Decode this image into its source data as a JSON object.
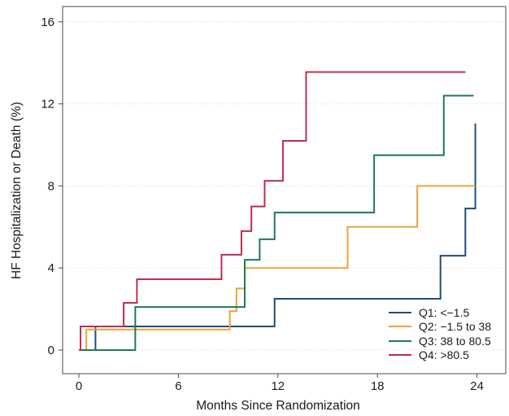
{
  "figure": {
    "background": "#ffffff",
    "frame_color": "#4a4a4a",
    "grid_color": "#d4d4d4",
    "text_color": "#1a1a1a"
  },
  "chart_data": {
    "type": "line",
    "subtype": "kaplan-meier-cumulative-incidence-step",
    "title": "",
    "xlabel": "Months Since Randomization",
    "ylabel": "HF Hospitalization or Death (%)",
    "x_ticks": [
      0,
      6,
      12,
      18,
      24
    ],
    "y_ticks": [
      0,
      4,
      8,
      12,
      16
    ],
    "xlim": [
      -1.0,
      25.7
    ],
    "ylim": [
      -1.1,
      16.7
    ],
    "grid": "horizontal-dotted",
    "legend_position": "bottom-right",
    "series": [
      {
        "name": "Q1",
        "label": "Q1: <−1.5",
        "color": "#1f4e79",
        "end_month": 23.95,
        "steps": [
          [
            0,
            0
          ],
          [
            1.0,
            1.15
          ],
          [
            11.8,
            2.5
          ],
          [
            21.8,
            4.6
          ],
          [
            23.3,
            6.9
          ],
          [
            23.9,
            11.0
          ]
        ]
      },
      {
        "name": "Q2",
        "label": "Q2: −1.5 to 38",
        "color": "#e8a33d",
        "end_month": 23.9,
        "steps": [
          [
            0,
            0
          ],
          [
            0.45,
            1.0
          ],
          [
            9.1,
            1.9
          ],
          [
            9.5,
            3.0
          ],
          [
            10.0,
            4.0
          ],
          [
            16.2,
            6.0
          ],
          [
            20.4,
            8.0
          ]
        ]
      },
      {
        "name": "Q3",
        "label": "Q3: 38 to 80.5",
        "color": "#217a4f",
        "end_month": 23.8,
        "steps": [
          [
            0,
            0
          ],
          [
            3.4,
            2.1
          ],
          [
            10.0,
            4.4
          ],
          [
            10.9,
            5.4
          ],
          [
            11.8,
            6.7
          ],
          [
            17.8,
            9.5
          ],
          [
            22.0,
            12.4
          ]
        ]
      },
      {
        "name": "Q4",
        "label": "Q4: >80.5",
        "color": "#bd2e4e",
        "end_month": 23.3,
        "steps": [
          [
            0,
            0
          ],
          [
            0.1,
            1.15
          ],
          [
            2.7,
            2.3
          ],
          [
            3.5,
            3.45
          ],
          [
            8.6,
            4.65
          ],
          [
            9.8,
            5.8
          ],
          [
            10.4,
            7.0
          ],
          [
            11.2,
            8.25
          ],
          [
            12.3,
            10.2
          ],
          [
            13.7,
            13.55
          ]
        ]
      }
    ]
  }
}
